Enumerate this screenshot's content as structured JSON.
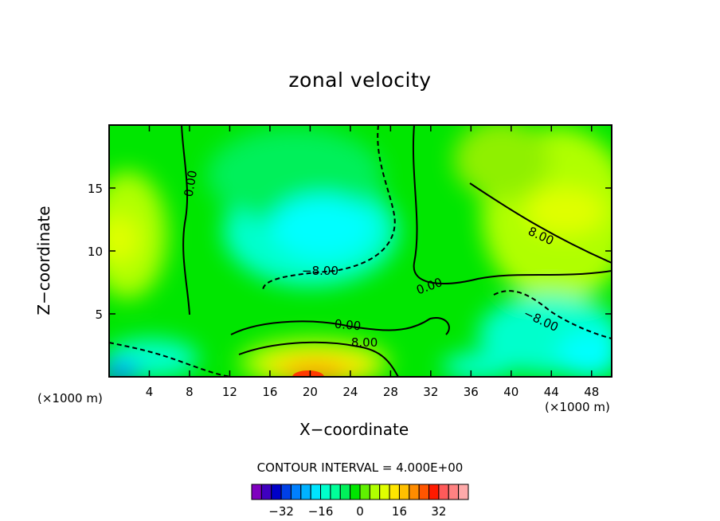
{
  "chart_data": {
    "type": "heatmap",
    "title": "zonal velocity",
    "xlabel": "X−coordinate",
    "ylabel": "Z−coordinate",
    "x_unit": "(×1000 m)",
    "z_unit": "(×1000 m)",
    "xlim": [
      0,
      50
    ],
    "ylim": [
      0,
      20
    ],
    "x_ticks": [
      4,
      8,
      12,
      16,
      20,
      24,
      28,
      32,
      36,
      40,
      44,
      48
    ],
    "y_ticks": [
      5,
      10,
      15
    ],
    "contour_labels": [
      {
        "text": "0.00",
        "x": 8.5,
        "y": 15.3,
        "angle": -80
      },
      {
        "text": "8.00",
        "x": 42.8,
        "y": 10.9,
        "angle": 25
      },
      {
        "text": "−8.00",
        "x": 21.0,
        "y": 8.1,
        "angle": 0
      },
      {
        "text": "0.00",
        "x": 32.0,
        "y": 6.9,
        "angle": -20
      },
      {
        "text": "0.00",
        "x": 23.7,
        "y": 3.8,
        "angle": 5
      },
      {
        "text": "8.00",
        "x": 25.4,
        "y": 2.4,
        "angle": 0
      },
      {
        "text": "−8.00",
        "x": 42.8,
        "y": 4.2,
        "angle": 25
      }
    ],
    "interval_text": "CONTOUR INTERVAL = 4.000E+00",
    "colorbar": {
      "colors": [
        "#7f00bf",
        "#3f00bf",
        "#0000c8",
        "#0040e6",
        "#0080ff",
        "#00b2ff",
        "#00e5ff",
        "#00ffcc",
        "#00ff99",
        "#00f05a",
        "#00e600",
        "#60f000",
        "#b0ff00",
        "#e0ff00",
        "#ffe600",
        "#ffc000",
        "#ff8c00",
        "#ff5500",
        "#ff1a00",
        "#ff5a5a",
        "#ff8282",
        "#ffaaaa"
      ],
      "labels": [
        "−32",
        "−16",
        "0",
        "16",
        "32"
      ],
      "label_values": [
        -32,
        -16,
        0,
        16,
        32
      ]
    }
  }
}
